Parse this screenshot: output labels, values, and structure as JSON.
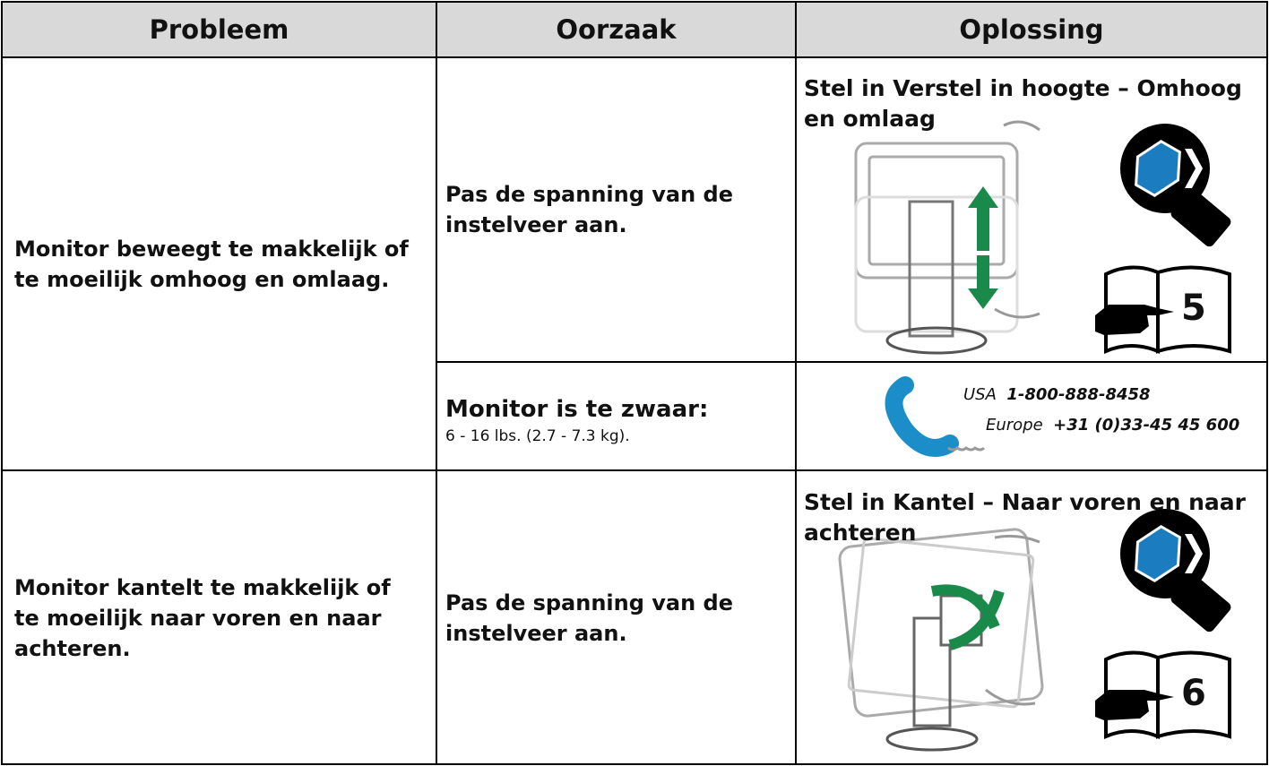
{
  "header": {
    "columns": [
      "Probleem",
      "Oorzaak",
      "Oplossing"
    ]
  },
  "rows": [
    {
      "problem": "Monitor beweegt te makkelijk of te moeilijk omhoog en omlaag.",
      "causes": [
        {
          "title": "Pas de spanning van de instelveer aan.",
          "solution": {
            "title": "Stel in Verstel in hoogte – Omhoog en omlaag",
            "page": "5"
          }
        },
        {
          "title": "Monitor is te zwaar:",
          "detail": "6 - 16 lbs. (2.7 - 7.3 kg).",
          "contacts": [
            {
              "region": "USA",
              "phone": "1-800-888-8458"
            },
            {
              "region": "Europe",
              "phone": "+31 (0)33-45 45 600"
            }
          ]
        }
      ]
    },
    {
      "problem": "Monitor kantelt te makkelijk of te moeilijk naar voren en naar achteren.",
      "causes": [
        {
          "title": "Pas de spanning van de instelveer aan.",
          "solution": {
            "title": "Stel in Kantel – Naar voren en naar achteren",
            "page": "6"
          }
        }
      ]
    }
  ]
}
